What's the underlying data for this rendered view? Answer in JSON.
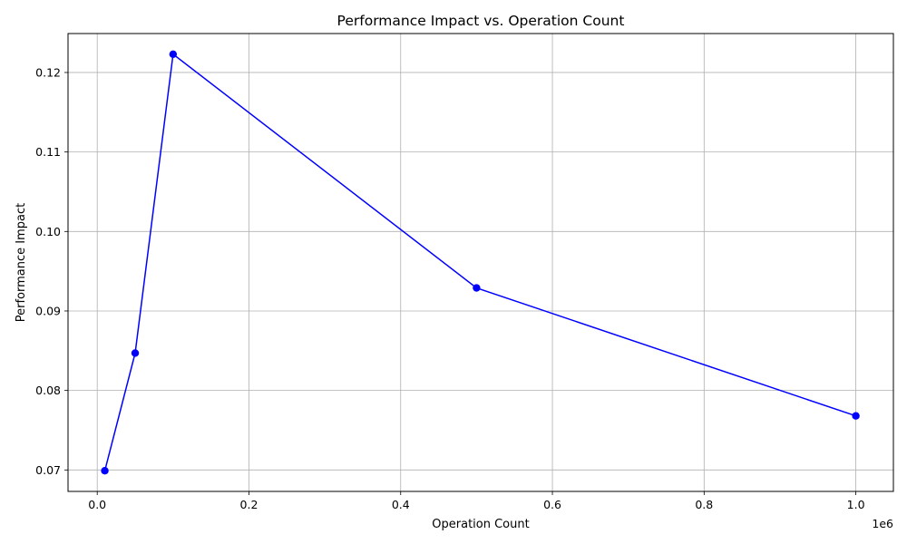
{
  "chart_data": {
    "type": "line",
    "title": "Performance Impact vs. Operation Count",
    "xlabel": "Operation Count",
    "ylabel": "Performance Impact",
    "x_offset_text": "1e6",
    "grid": true,
    "xlim": [
      -38500,
      1049500
    ],
    "ylim": [
      0.0673,
      0.1249
    ],
    "x_ticks": [
      0,
      200000,
      400000,
      600000,
      800000,
      1000000
    ],
    "x_tick_labels": [
      "0.0",
      "0.2",
      "0.4",
      "0.6",
      "0.8",
      "1.0"
    ],
    "y_ticks": [
      0.07,
      0.08,
      0.09,
      0.1,
      0.11,
      0.12
    ],
    "y_tick_labels": [
      "0.07",
      "0.08",
      "0.09",
      "0.10",
      "0.11",
      "0.12"
    ],
    "series": [
      {
        "color": "#0000ff",
        "marker": "circle",
        "x": [
          10000,
          50000,
          100000,
          500000,
          1000000
        ],
        "y": [
          0.0699,
          0.0847,
          0.1223,
          0.0929,
          0.0768
        ]
      }
    ]
  }
}
